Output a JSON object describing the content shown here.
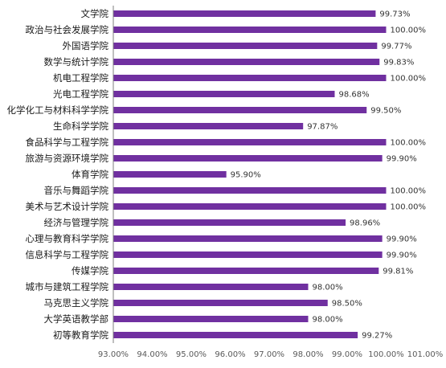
{
  "chart_data": {
    "type": "bar",
    "orientation": "horizontal",
    "categories": [
      "文学院",
      "政治与社会发展学院",
      "外国语学院",
      "数学与统计学院",
      "机电工程学院",
      "光电工程学院",
      "化学化工与材料科学学院",
      "生命科学学院",
      "食品科学与工程学院",
      "旅游与资源环境学院",
      "体育学院",
      "音乐与舞蹈学院",
      "美术与艺术设计学院",
      "经济与管理学院",
      "心理与教育科学学院",
      "信息科学与工程学院",
      "传媒学院",
      "城市与建筑工程学院",
      "马克思主义学院",
      "大学英语教学部",
      "初等教育学院"
    ],
    "values": [
      99.73,
      100.0,
      99.77,
      99.83,
      100.0,
      98.68,
      99.5,
      97.87,
      100.0,
      99.9,
      95.9,
      100.0,
      100.0,
      98.96,
      99.9,
      99.9,
      99.81,
      98.0,
      98.5,
      98.0,
      99.27
    ],
    "value_labels": [
      "99.73%",
      "100.00%",
      "99.77%",
      "99.83%",
      "100.00%",
      "98.68%",
      "99.50%",
      "97.87%",
      "100.00%",
      "99.90%",
      "95.90%",
      "100.00%",
      "100.00%",
      "98.96%",
      "99.90%",
      "99.90%",
      "99.81%",
      "98.00%",
      "98.50%",
      "98.00%",
      "99.27%"
    ],
    "xlim": [
      93,
      101
    ],
    "x_ticks": [
      93,
      94,
      95,
      96,
      97,
      98,
      99,
      100,
      101
    ],
    "x_tick_labels": [
      "93.00%",
      "94.00%",
      "95.00%",
      "96.00%",
      "97.00%",
      "98.00%",
      "99.00%",
      "100.00%",
      "101.00%"
    ],
    "bar_color": "#7030A0",
    "grid": false,
    "legend": "none",
    "title": "",
    "xlabel": "",
    "ylabel": ""
  }
}
